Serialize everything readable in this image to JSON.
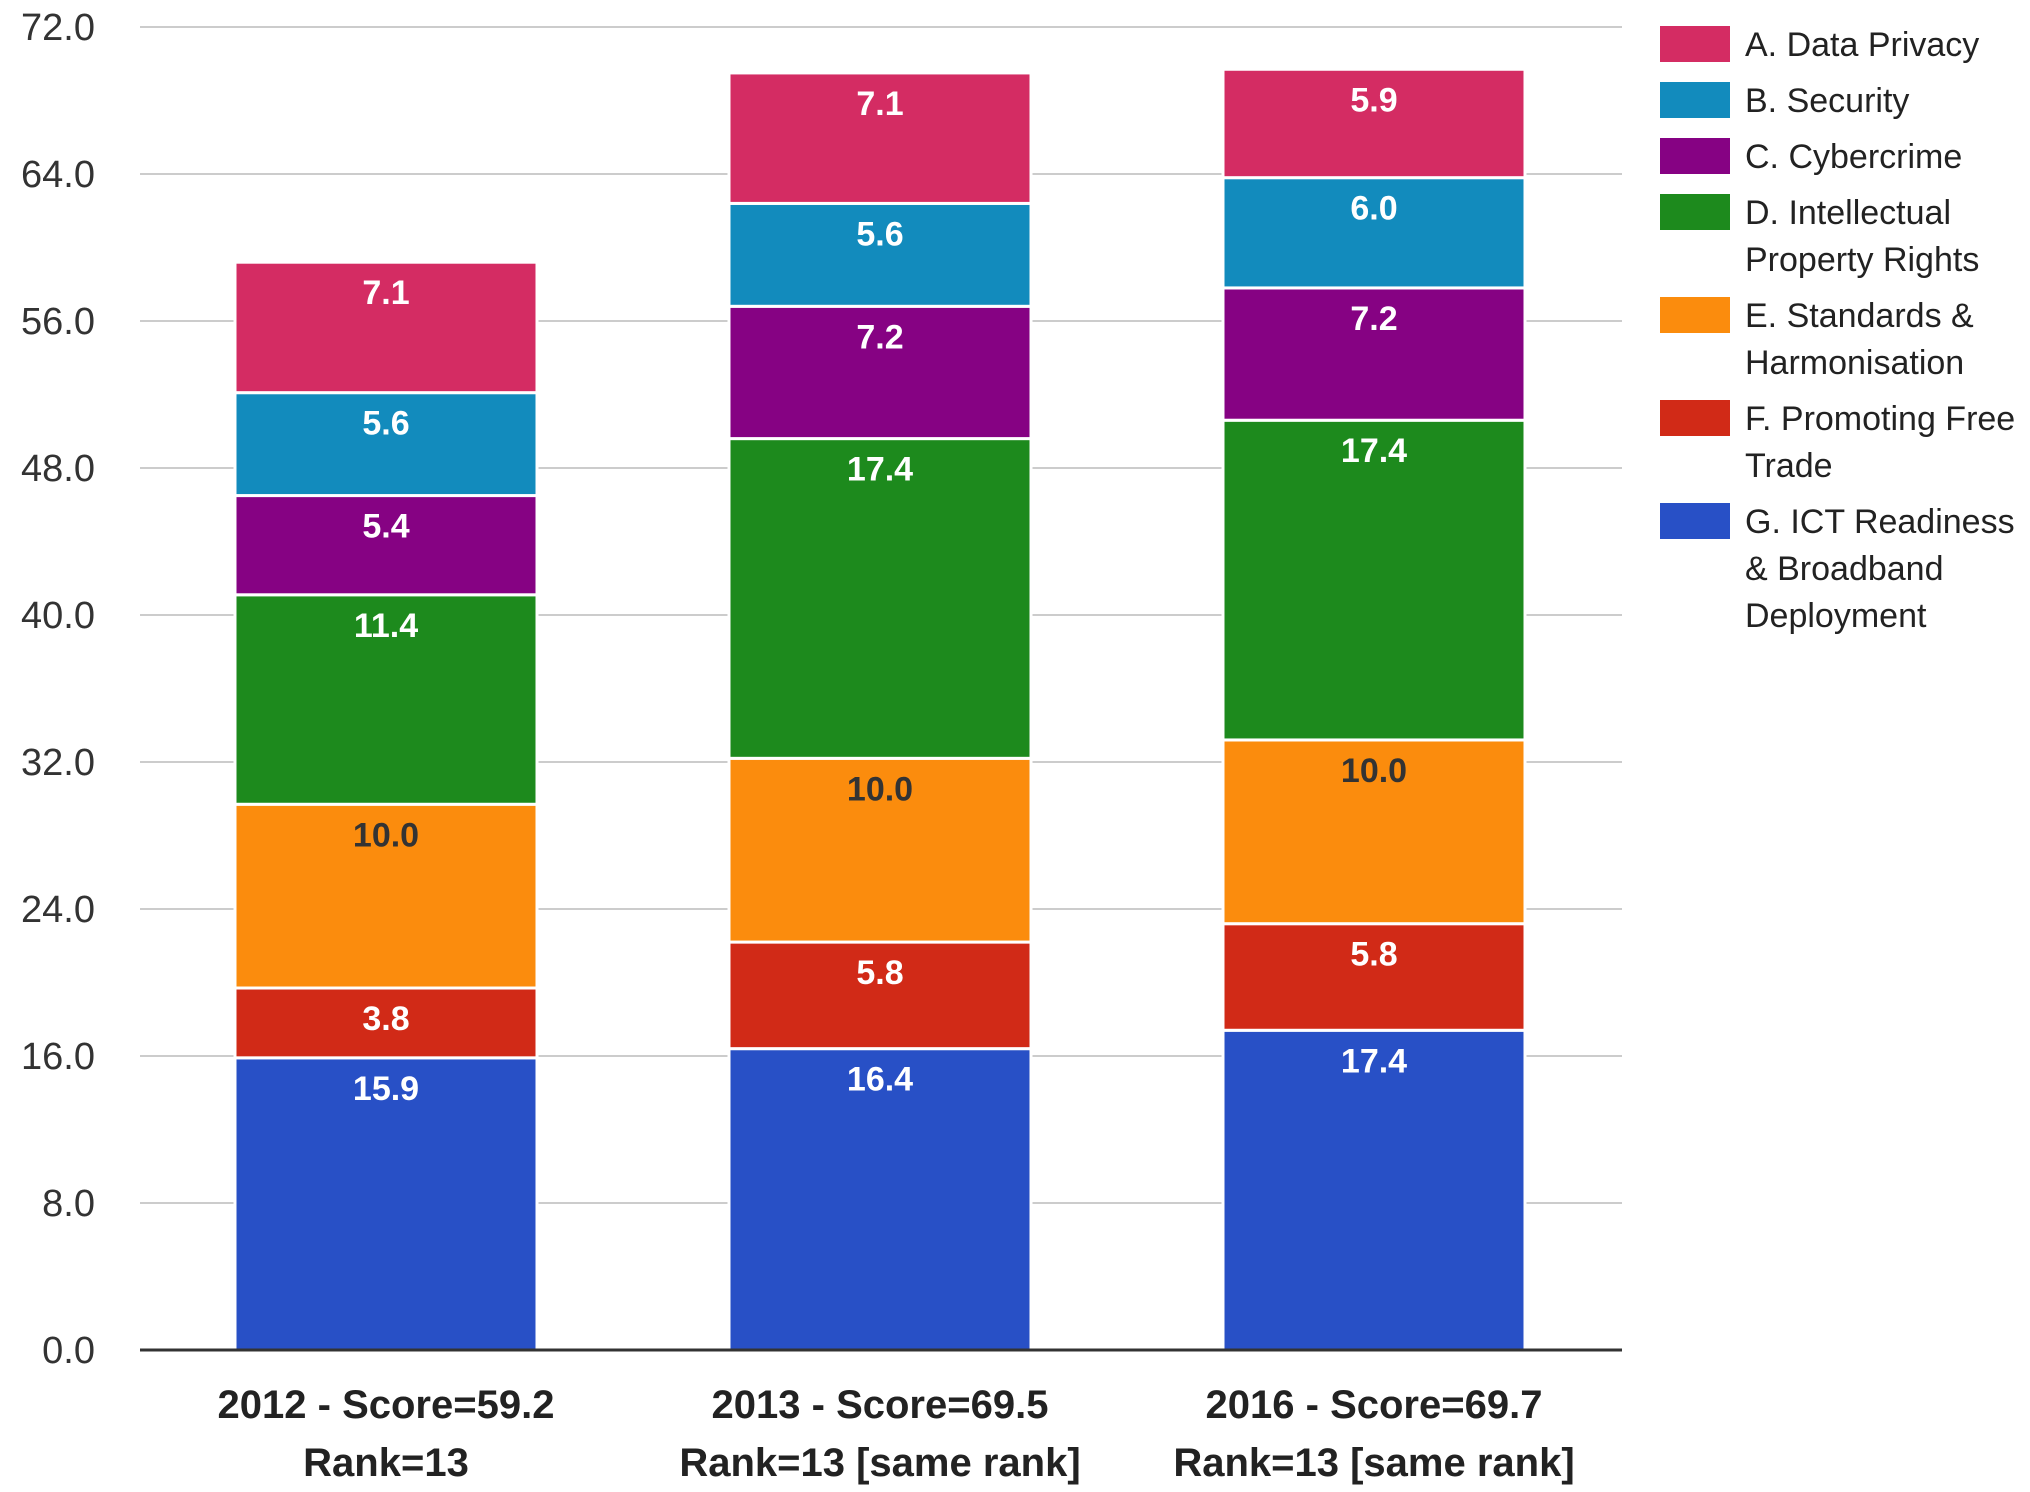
{
  "chart_data": {
    "type": "bar",
    "stacked": true,
    "title": "",
    "xlabel": "",
    "ylabel": "",
    "ylim": [
      0,
      72
    ],
    "yticks": [
      "0.0",
      "8.0",
      "16.0",
      "24.0",
      "32.0",
      "40.0",
      "48.0",
      "56.0",
      "64.0",
      "72.0"
    ],
    "grid": true,
    "legend_position": "right",
    "categories": [
      [
        "2012 - Score=59.2",
        "Rank=13"
      ],
      [
        "2013 - Score=69.5",
        "Rank=13 [same rank]"
      ],
      [
        "2016 - Score=69.7",
        "Rank=13 [same rank]"
      ]
    ],
    "series": [
      {
        "name": [
          "G. ICT Readiness",
          "& Broadband",
          "Deployment"
        ],
        "color": "#2850c6",
        "label_color": "#ffffff",
        "values": [
          15.9,
          16.4,
          17.4
        ],
        "labels": [
          "15.9",
          "16.4",
          "17.4"
        ]
      },
      {
        "name": [
          "F. Promoting Free",
          "Trade"
        ],
        "color": "#d12a17",
        "label_color": "#ffffff",
        "values": [
          3.8,
          5.8,
          5.8
        ],
        "labels": [
          "3.8",
          "5.8",
          "5.8"
        ]
      },
      {
        "name": [
          "E. Standards &",
          "Harmonisation"
        ],
        "color": "#fb8c0d",
        "label_color": "#333333",
        "values": [
          10.0,
          10.0,
          10.0
        ],
        "labels": [
          "10.0",
          "10.0",
          "10.0"
        ]
      },
      {
        "name": [
          "D. Intellectual",
          "Property Rights"
        ],
        "color": "#1d8a1d",
        "label_color": "#ffffff",
        "values": [
          11.4,
          17.4,
          17.4
        ],
        "labels": [
          "11.4",
          "17.4",
          "17.4"
        ]
      },
      {
        "name": [
          "C. Cybercrime"
        ],
        "color": "#860283",
        "label_color": "#ffffff",
        "values": [
          5.4,
          7.2,
          7.2
        ],
        "labels": [
          "5.4",
          "7.2",
          "7.2"
        ]
      },
      {
        "name": [
          "B. Security"
        ],
        "color": "#128bbd",
        "label_color": "#ffffff",
        "values": [
          5.6,
          5.6,
          6.0
        ],
        "labels": [
          "5.6",
          "5.6",
          "6.0"
        ]
      },
      {
        "name": [
          "A. Data Privacy"
        ],
        "color": "#d42c63",
        "label_color": "#ffffff",
        "values": [
          7.1,
          7.1,
          5.9
        ],
        "labels": [
          "7.1",
          "7.1",
          "5.9"
        ]
      }
    ],
    "legend_order": [
      "A. Data Privacy",
      "B. Security",
      "C. Cybercrime",
      "D. Intellectual",
      "E. Standards &",
      "F. Promoting Free",
      "G. ICT Readiness"
    ]
  }
}
